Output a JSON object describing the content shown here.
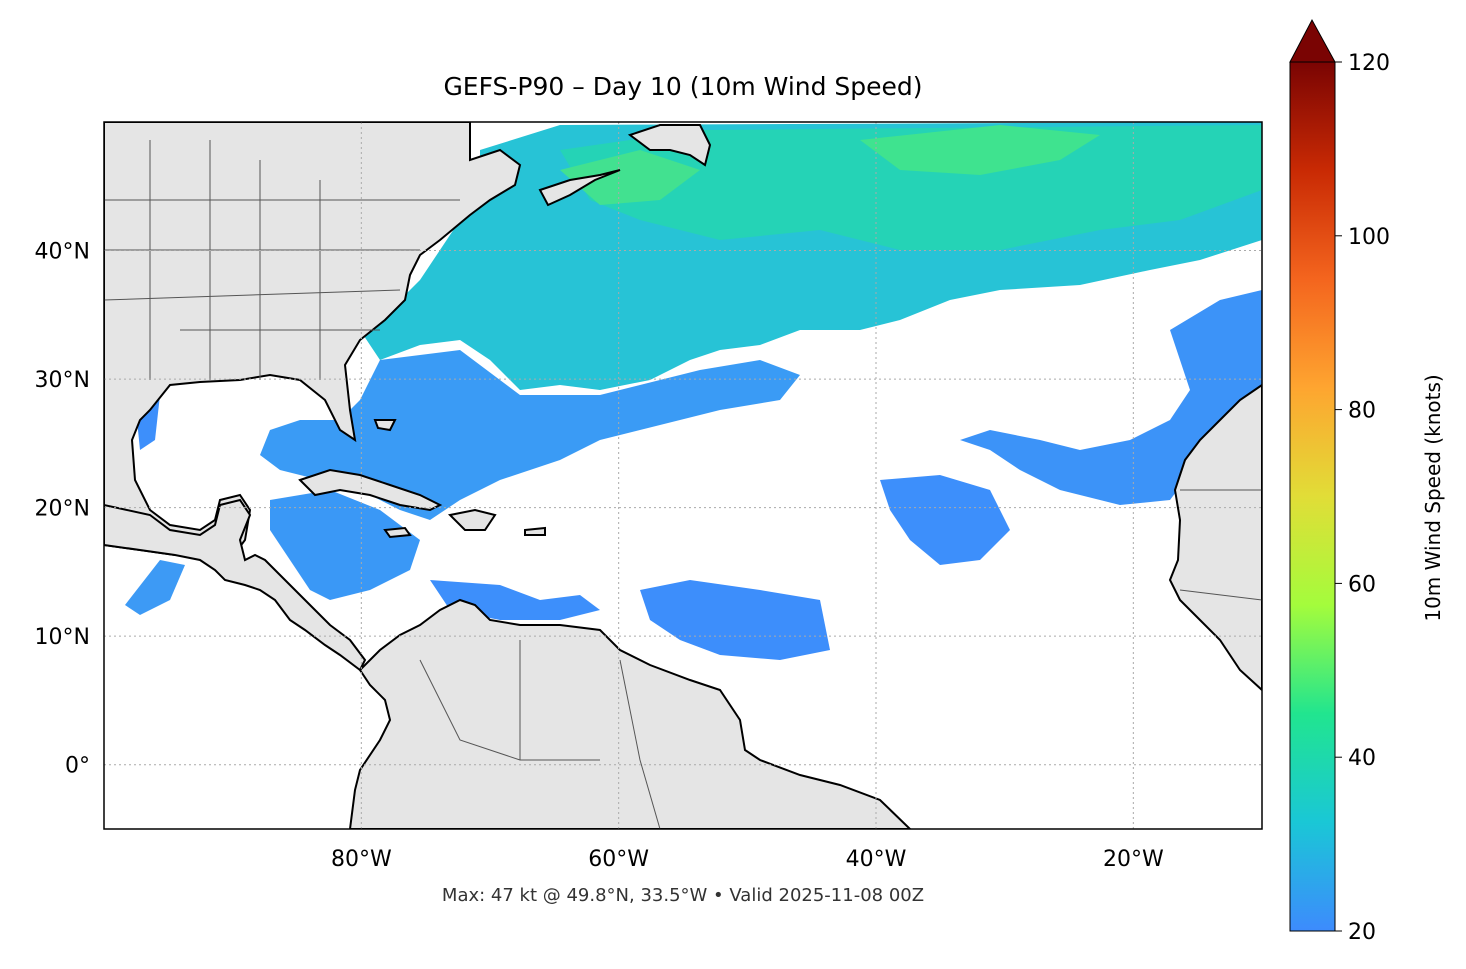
{
  "title": "GEFS-P90 – Day 10 (10m Wind Speed)",
  "footer": "Max: 47 kt @ 49.8°N, 33.5°W • Valid 2025-11-08 00Z",
  "map": {
    "lon_range": [
      -100,
      -10
    ],
    "lat_range": [
      -5,
      50
    ],
    "lon_ticks": [
      {
        "value": -80,
        "label": "80°W"
      },
      {
        "value": -60,
        "label": "60°W"
      },
      {
        "value": -40,
        "label": "40°W"
      },
      {
        "value": -20,
        "label": "20°W"
      }
    ],
    "lat_ticks": [
      {
        "value": 40,
        "label": "40°N"
      },
      {
        "value": 30,
        "label": "30°N"
      },
      {
        "value": 20,
        "label": "20°N"
      },
      {
        "value": 10,
        "label": "10°N"
      },
      {
        "value": 0,
        "label": "0°"
      }
    ],
    "gridlines": true,
    "land_color": "#e5e5e5",
    "ocean_color": "#ffffff"
  },
  "colorbar": {
    "label": "10m Wind Speed (knots)",
    "min": 20,
    "max": 120,
    "ticks": [
      20,
      40,
      60,
      80,
      100,
      120
    ],
    "extend": "max",
    "colormap": "turbo",
    "stops": [
      "#3d8bfd",
      "#1ac7d6",
      "#21e58f",
      "#a4fc3c",
      "#e1dd37",
      "#fea530",
      "#f4651e",
      "#c92a04",
      "#7a0403"
    ]
  }
}
